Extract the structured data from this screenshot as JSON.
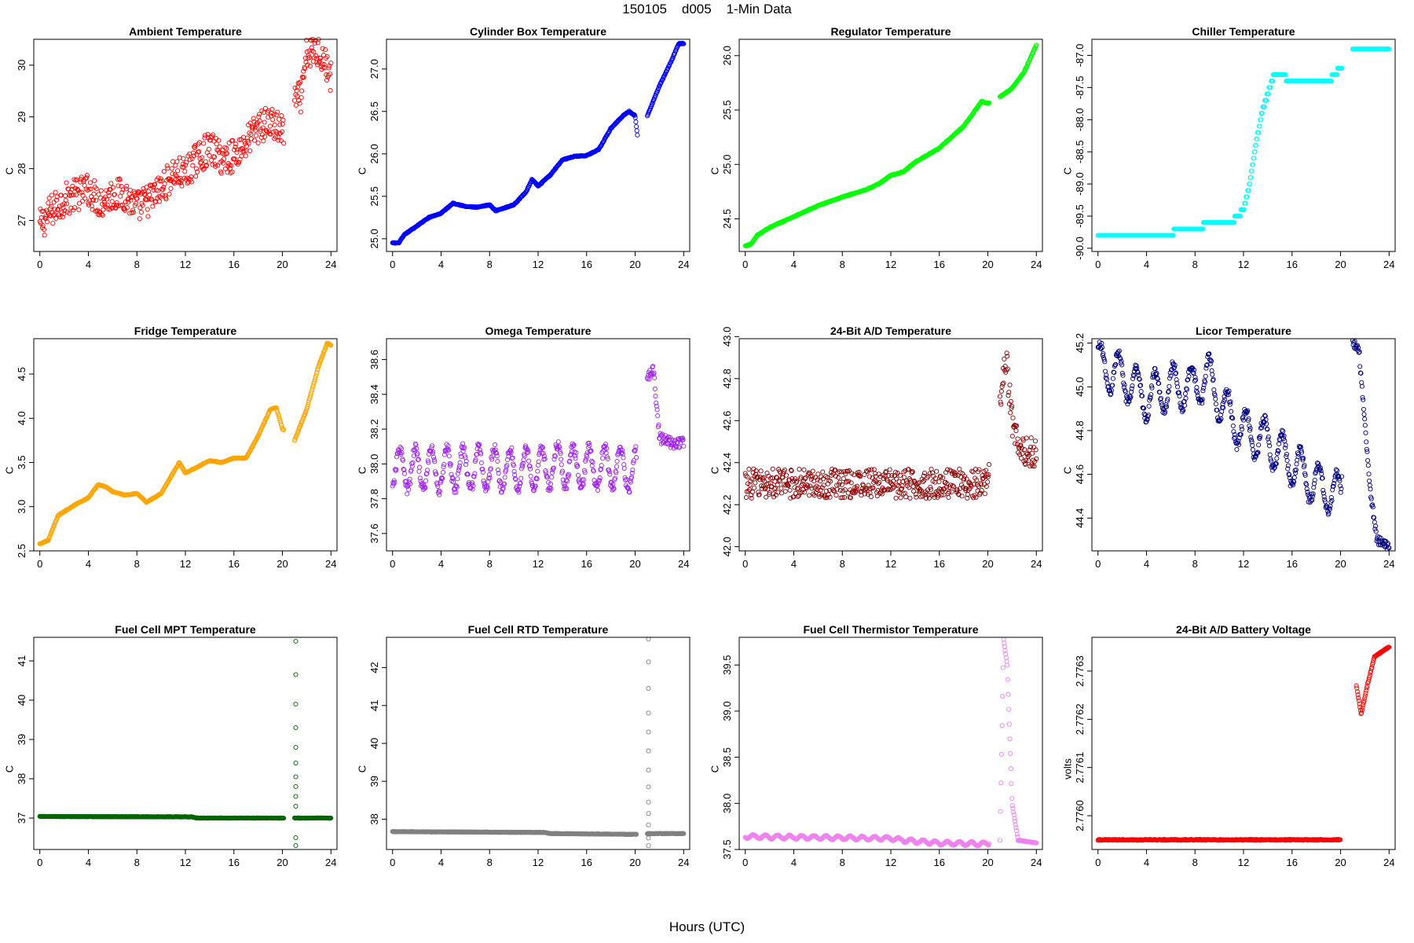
{
  "figure": {
    "title": "150105    d005    1-Min Data",
    "xlabel": "Hours (UTC)"
  },
  "chart_data": [
    {
      "type": "scatter",
      "title": "Ambient Temperature",
      "ylabel": "C",
      "color": "#ff0000",
      "xlim": [
        -0.5,
        24.5
      ],
      "ylim": [
        26.4,
        30.5
      ],
      "yticks": [
        27,
        28,
        29,
        30
      ],
      "ytick_labels": [
        "27",
        "28",
        "29",
        "30"
      ],
      "xticks": [
        0,
        4,
        8,
        12,
        16,
        20,
        24
      ],
      "pattern": "noisy",
      "noise": 0.32,
      "gap": [
        20.1,
        21.0
      ],
      "anchors": [
        [
          0,
          26.9
        ],
        [
          1,
          27.2
        ],
        [
          2,
          27.4
        ],
        [
          4,
          27.6
        ],
        [
          5,
          27.35
        ],
        [
          6,
          27.5
        ],
        [
          7,
          27.5
        ],
        [
          8,
          27.25
        ],
        [
          9,
          27.4
        ],
        [
          10,
          27.6
        ],
        [
          11,
          27.9
        ],
        [
          12,
          27.9
        ],
        [
          13,
          28.2
        ],
        [
          14,
          28.4
        ],
        [
          15,
          28.2
        ],
        [
          16,
          28.25
        ],
        [
          17,
          28.5
        ],
        [
          18,
          28.8
        ],
        [
          19,
          28.9
        ],
        [
          20,
          28.7
        ],
        [
          21,
          29.3
        ],
        [
          21.6,
          29.4
        ],
        [
          22,
          30.2
        ],
        [
          23,
          30.3
        ],
        [
          24,
          29.8
        ]
      ]
    },
    {
      "type": "scatter",
      "title": "Cylinder Box Temperature",
      "ylabel": "C",
      "color": "#0000ff",
      "xlim": [
        -0.5,
        24.5
      ],
      "ylim": [
        24.85,
        27.35
      ],
      "yticks": [
        25.0,
        25.5,
        26.0,
        26.5,
        27.0
      ],
      "ytick_labels": [
        "25.0",
        "25.5",
        "26.0",
        "26.5",
        "27.0"
      ],
      "xticks": [
        0,
        4,
        8,
        12,
        16,
        20,
        24
      ],
      "pattern": "smooth",
      "noise": 0.005,
      "gap": [
        20.2,
        21.0
      ],
      "anchors": [
        [
          0,
          24.95
        ],
        [
          0.5,
          24.95
        ],
        [
          1,
          25.05
        ],
        [
          2,
          25.15
        ],
        [
          3,
          25.25
        ],
        [
          4,
          25.3
        ],
        [
          5,
          25.42
        ],
        [
          6,
          25.38
        ],
        [
          7,
          25.37
        ],
        [
          8,
          25.4
        ],
        [
          8.5,
          25.33
        ],
        [
          10,
          25.4
        ],
        [
          11,
          25.55
        ],
        [
          11.5,
          25.7
        ],
        [
          12,
          25.62
        ],
        [
          13,
          25.75
        ],
        [
          14,
          25.93
        ],
        [
          15,
          25.97
        ],
        [
          16,
          25.98
        ],
        [
          17,
          26.05
        ],
        [
          18,
          26.3
        ],
        [
          19,
          26.45
        ],
        [
          19.5,
          26.5
        ],
        [
          20,
          26.45
        ],
        [
          20.2,
          26.2
        ],
        [
          21,
          26.45
        ],
        [
          22,
          26.8
        ],
        [
          23,
          27.1
        ],
        [
          23.6,
          27.3
        ],
        [
          24,
          27.3
        ]
      ]
    },
    {
      "type": "scatter",
      "title": "Regulator Temperature",
      "ylabel": "C",
      "color": "#00ff00",
      "xlim": [
        -0.5,
        24.5
      ],
      "ylim": [
        24.2,
        26.15
      ],
      "yticks": [
        24.5,
        25.0,
        25.5,
        26.0
      ],
      "ytick_labels": [
        "24.5",
        "25.0",
        "25.5",
        "26.0"
      ],
      "xticks": [
        0,
        4,
        8,
        12,
        16,
        20,
        24
      ],
      "pattern": "smooth",
      "noise": 0.004,
      "gap": [
        20.1,
        21.0
      ],
      "anchors": [
        [
          0,
          24.25
        ],
        [
          0.5,
          24.27
        ],
        [
          1,
          24.35
        ],
        [
          2,
          24.42
        ],
        [
          4,
          24.52
        ],
        [
          6,
          24.62
        ],
        [
          8,
          24.7
        ],
        [
          10,
          24.77
        ],
        [
          11,
          24.82
        ],
        [
          12,
          24.9
        ],
        [
          13,
          24.93
        ],
        [
          14,
          25.02
        ],
        [
          16,
          25.15
        ],
        [
          18,
          25.35
        ],
        [
          19.5,
          25.58
        ],
        [
          20,
          25.56
        ],
        [
          21,
          25.62
        ],
        [
          22,
          25.7
        ],
        [
          23,
          25.85
        ],
        [
          24,
          26.1
        ]
      ]
    },
    {
      "type": "scatter",
      "title": "Chiller Temperature",
      "ylabel": "C",
      "color": "#00ffff",
      "xlim": [
        -0.5,
        24.5
      ],
      "ylim": [
        -90.05,
        -86.75
      ],
      "yticks": [
        -90.0,
        -89.5,
        -89.0,
        -88.5,
        -88.0,
        -87.5,
        -87.0
      ],
      "ytick_labels": [
        "-90.0",
        "-89.5",
        "-89.0",
        "-88.5",
        "-88.0",
        "-87.5",
        "-87.0"
      ],
      "xticks": [
        0,
        4,
        8,
        12,
        16,
        20,
        24
      ],
      "pattern": "step",
      "noise": 0,
      "step": 0.1,
      "gap": [
        20.1,
        21.0
      ],
      "anchors": [
        [
          0,
          -89.8
        ],
        [
          6,
          -89.8
        ],
        [
          6.5,
          -89.7
        ],
        [
          8,
          -89.75
        ],
        [
          9,
          -89.6
        ],
        [
          11,
          -89.6
        ],
        [
          12,
          -89.4
        ],
        [
          12.5,
          -89.0
        ],
        [
          13,
          -88.4
        ],
        [
          13.5,
          -87.9
        ],
        [
          14,
          -87.6
        ],
        [
          14.5,
          -87.3
        ],
        [
          15,
          -87.3
        ],
        [
          16,
          -87.4
        ],
        [
          19,
          -87.4
        ],
        [
          20,
          -87.2
        ],
        [
          21,
          -86.9
        ],
        [
          24,
          -86.9
        ]
      ]
    },
    {
      "type": "scatter",
      "title": "Fridge Temperature",
      "ylabel": "C",
      "color": "#ffa500",
      "xlim": [
        -0.5,
        24.5
      ],
      "ylim": [
        2.5,
        4.9
      ],
      "yticks": [
        2.5,
        3.0,
        3.5,
        4.0,
        4.5
      ],
      "ytick_labels": [
        "2.5",
        "3.0",
        "3.5",
        "4.0",
        "4.5"
      ],
      "xticks": [
        0,
        4,
        8,
        12,
        16,
        20,
        24
      ],
      "pattern": "smooth",
      "noise": 0.004,
      "gap": [
        20.1,
        21.0
      ],
      "anchors": [
        [
          0,
          2.58
        ],
        [
          0.7,
          2.62
        ],
        [
          1.5,
          2.9
        ],
        [
          3,
          3.03
        ],
        [
          4,
          3.1
        ],
        [
          4.8,
          3.25
        ],
        [
          5.5,
          3.22
        ],
        [
          6,
          3.17
        ],
        [
          7,
          3.13
        ],
        [
          8,
          3.15
        ],
        [
          8.8,
          3.05
        ],
        [
          10,
          3.15
        ],
        [
          11.5,
          3.5
        ],
        [
          12,
          3.38
        ],
        [
          13,
          3.45
        ],
        [
          14,
          3.52
        ],
        [
          15,
          3.5
        ],
        [
          16,
          3.55
        ],
        [
          17,
          3.55
        ],
        [
          18,
          3.8
        ],
        [
          19,
          4.1
        ],
        [
          19.5,
          4.12
        ],
        [
          20,
          3.88
        ],
        [
          21,
          3.75
        ],
        [
          22,
          4.1
        ],
        [
          23,
          4.6
        ],
        [
          23.7,
          4.85
        ],
        [
          24,
          4.83
        ]
      ]
    },
    {
      "type": "scatter",
      "title": "Omega Temperature",
      "ylabel": "C",
      "color": "#a020f0",
      "xlim": [
        -0.5,
        24.5
      ],
      "ylim": [
        37.5,
        38.72
      ],
      "yticks": [
        37.6,
        37.8,
        38.0,
        38.2,
        38.4,
        38.6
      ],
      "ytick_labels": [
        "37.6",
        "37.8",
        "38.0",
        "38.2",
        "38.4",
        "38.6"
      ],
      "xticks": [
        0,
        4,
        8,
        12,
        16,
        20,
        24
      ],
      "pattern": "osc",
      "noise": 0.03,
      "amp": 0.12,
      "period": 1.3,
      "osc_end": 20.1,
      "gap": [
        20.1,
        21.0
      ],
      "anchors": [
        [
          0,
          37.97
        ],
        [
          12,
          37.97
        ],
        [
          14,
          37.99
        ],
        [
          20,
          37.97
        ],
        [
          21,
          38.5
        ],
        [
          21.5,
          38.55
        ],
        [
          22,
          38.15
        ],
        [
          23,
          38.12
        ],
        [
          24,
          38.12
        ]
      ]
    },
    {
      "type": "scatter",
      "title": "24-Bit A/D Temperature",
      "ylabel": "C",
      "color": "#8b0000",
      "xlim": [
        -0.5,
        24.5
      ],
      "ylim": [
        41.98,
        42.99
      ],
      "yticks": [
        42.0,
        42.2,
        42.4,
        42.6,
        42.8,
        43.0
      ],
      "ytick_labels": [
        "42.0",
        "42.2",
        "42.4",
        "42.6",
        "42.8",
        "43.0"
      ],
      "xticks": [
        0,
        4,
        8,
        12,
        16,
        20,
        24
      ],
      "pattern": "noisy",
      "noise": 0.07,
      "gap": [
        20.1,
        21.0
      ],
      "anchors": [
        [
          0,
          42.3
        ],
        [
          20,
          42.3
        ],
        [
          21,
          42.7
        ],
        [
          21.5,
          42.9
        ],
        [
          22,
          42.6
        ],
        [
          22.7,
          42.45
        ],
        [
          24,
          42.45
        ]
      ]
    },
    {
      "type": "scatter",
      "title": "Licor Temperature",
      "ylabel": "C",
      "color": "#000080",
      "xlim": [
        -0.5,
        24.5
      ],
      "ylim": [
        44.25,
        45.22
      ],
      "yticks": [
        44.4,
        44.6,
        44.8,
        45.0,
        45.2
      ],
      "ytick_labels": [
        "44.4",
        "44.6",
        "44.8",
        "45.0",
        "45.2"
      ],
      "xticks": [
        0,
        4,
        8,
        12,
        16,
        20,
        24
      ],
      "pattern": "osc",
      "noise": 0.02,
      "amp": 0.1,
      "period": 1.5,
      "osc_end": 20.1,
      "gap": [
        20.1,
        21.0
      ],
      "anchors": [
        [
          0,
          45.1
        ],
        [
          2,
          45.05
        ],
        [
          4,
          44.95
        ],
        [
          6,
          45.0
        ],
        [
          8,
          45.0
        ],
        [
          9,
          45.05
        ],
        [
          10,
          44.95
        ],
        [
          11,
          44.85
        ],
        [
          12,
          44.8
        ],
        [
          14,
          44.75
        ],
        [
          15,
          44.7
        ],
        [
          16,
          44.65
        ],
        [
          18,
          44.55
        ],
        [
          20,
          44.5
        ],
        [
          21,
          45.2
        ],
        [
          21.5,
          45.18
        ],
        [
          22.5,
          44.5
        ],
        [
          23,
          44.3
        ],
        [
          24,
          44.27
        ]
      ]
    },
    {
      "type": "scatter",
      "title": "Fuel Cell MPT Temperature",
      "ylabel": "C",
      "color": "#006400",
      "xlim": [
        -0.5,
        24.5
      ],
      "ylim": [
        36.2,
        41.6
      ],
      "yticks": [
        37,
        38,
        39,
        40,
        41
      ],
      "ytick_labels": [
        "37",
        "38",
        "39",
        "40",
        "41"
      ],
      "xticks": [
        0,
        4,
        8,
        12,
        16,
        20,
        24
      ],
      "pattern": "smooth",
      "noise": 0.005,
      "gap": [
        20.1,
        21.0
      ],
      "anchors": [
        [
          0,
          37.04
        ],
        [
          12.5,
          37.03
        ],
        [
          13,
          37.0
        ],
        [
          20,
          37.0
        ],
        [
          21,
          37.0
        ],
        [
          24,
          37.0
        ]
      ],
      "spike": {
        "x": 21.1,
        "values": [
          41.5,
          40.65,
          39.9,
          39.3,
          38.8,
          38.4,
          38.05,
          37.8,
          37.55,
          37.3,
          36.5,
          36.3
        ]
      }
    },
    {
      "type": "scatter",
      "title": "Fuel Cell RTD Temperature",
      "ylabel": "C",
      "color": "#808080",
      "xlim": [
        -0.5,
        24.5
      ],
      "ylim": [
        37.2,
        42.8
      ],
      "yticks": [
        38,
        39,
        40,
        41,
        42
      ],
      "ytick_labels": [
        "38",
        "39",
        "40",
        "41",
        "42"
      ],
      "xticks": [
        0,
        4,
        8,
        12,
        16,
        20,
        24
      ],
      "pattern": "smooth",
      "noise": 0.005,
      "gap": [
        20.1,
        21.0
      ],
      "anchors": [
        [
          0,
          37.67
        ],
        [
          12.5,
          37.65
        ],
        [
          13,
          37.62
        ],
        [
          20,
          37.6
        ],
        [
          21,
          37.62
        ],
        [
          24,
          37.62
        ]
      ],
      "spike": {
        "x": 21.1,
        "values": [
          42.75,
          42.15,
          41.45,
          40.8,
          40.3,
          39.8,
          39.3,
          38.85,
          38.45,
          38.15,
          37.85,
          37.5,
          37.3
        ]
      }
    },
    {
      "type": "scatter",
      "title": "Fuel Cell Thermistor Temperature",
      "ylabel": "C",
      "color": "#ee82ee",
      "xlim": [
        -0.5,
        24.5
      ],
      "ylim": [
        37.5,
        39.8
      ],
      "yticks": [
        37.5,
        38.0,
        38.5,
        39.0,
        39.5
      ],
      "ytick_labels": [
        "37.5",
        "38.0",
        "38.5",
        "39.0",
        "39.5"
      ],
      "xticks": [
        0,
        4,
        8,
        12,
        16,
        20,
        24
      ],
      "pattern": "osc",
      "noise": 0.004,
      "amp": 0.02,
      "period": 1.0,
      "osc_end": 20.1,
      "gap": [
        20.1,
        21.0
      ],
      "anchors": [
        [
          0,
          37.64
        ],
        [
          12,
          37.62
        ],
        [
          13,
          37.6
        ],
        [
          16,
          37.57
        ],
        [
          20,
          37.56
        ],
        [
          21,
          37.6
        ],
        [
          21.3,
          39.78
        ],
        [
          21.6,
          39.5
        ],
        [
          22,
          38.0
        ],
        [
          22.5,
          37.6
        ],
        [
          24,
          37.57
        ]
      ]
    },
    {
      "type": "scatter",
      "title": "24-Bit A/D Battery Voltage",
      "ylabel": "volts",
      "color": "#ff0000",
      "xlim": [
        -0.5,
        24.5
      ],
      "ylim": [
        2.77593,
        2.77637
      ],
      "yticks": [
        2.776,
        2.7761,
        2.7762,
        2.7763
      ],
      "ytick_labels": [
        "2.7760",
        "2.7761",
        "2.7762",
        "2.7763"
      ],
      "xticks": [
        0,
        4,
        8,
        12,
        16,
        20,
        24
      ],
      "pattern": "smooth",
      "noise": 1e-06,
      "gap": [
        20.0,
        21.3
      ],
      "anchors": [
        [
          0,
          2.77595
        ],
        [
          20,
          2.77595
        ],
        [
          21.3,
          2.77627
        ],
        [
          21.7,
          2.77621
        ],
        [
          22.2,
          2.77627
        ],
        [
          22.8,
          2.77633
        ],
        [
          24,
          2.77635
        ]
      ]
    }
  ]
}
